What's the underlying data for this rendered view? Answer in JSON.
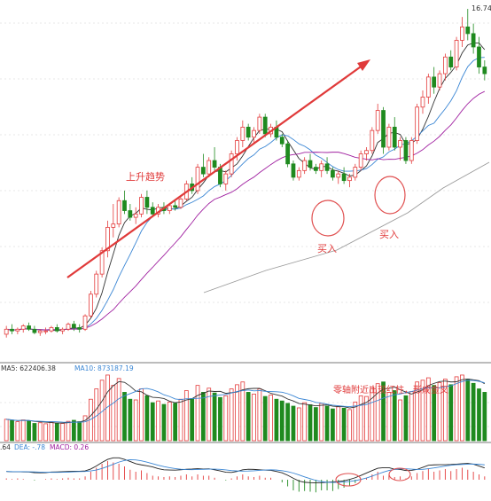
{
  "chart_data": {
    "type": "candlestick",
    "price_panel": {
      "high_label": "16.74",
      "ma_colors": {
        "ma5": "#333333",
        "ma10": "#3a86d4",
        "ma20": "#a020a0",
        "ma60": "#9a9a9a"
      },
      "annotations": {
        "trend_text": "上升趋势",
        "buy_text_1": "买入",
        "buy_text_2": "买入"
      },
      "candles_ohlc": [
        [
          7.0,
          7.25,
          6.9,
          7.15
        ],
        [
          7.15,
          7.3,
          7.0,
          7.1
        ],
        [
          7.1,
          7.2,
          7.0,
          7.15
        ],
        [
          7.15,
          7.3,
          7.05,
          7.25
        ],
        [
          7.25,
          7.35,
          7.1,
          7.15
        ],
        [
          7.15,
          7.25,
          7.0,
          7.05
        ],
        [
          7.05,
          7.15,
          6.95,
          7.1
        ],
        [
          7.1,
          7.2,
          7.0,
          7.1
        ],
        [
          7.1,
          7.25,
          7.05,
          7.2
        ],
        [
          7.2,
          7.3,
          7.05,
          7.1
        ],
        [
          7.1,
          7.2,
          7.0,
          7.15
        ],
        [
          7.15,
          7.35,
          7.1,
          7.3
        ],
        [
          7.3,
          7.4,
          7.1,
          7.2
        ],
        [
          7.2,
          7.3,
          7.05,
          7.15
        ],
        [
          7.15,
          7.6,
          7.1,
          7.55
        ],
        [
          7.55,
          8.3,
          7.5,
          8.2
        ],
        [
          8.2,
          8.9,
          8.1,
          8.8
        ],
        [
          8.8,
          9.6,
          8.7,
          9.5
        ],
        [
          9.5,
          10.4,
          9.3,
          10.2
        ],
        [
          10.2,
          10.9,
          9.9,
          10.3
        ],
        [
          10.3,
          11.1,
          10.2,
          11.0
        ],
        [
          11.0,
          11.3,
          10.6,
          10.7
        ],
        [
          10.7,
          10.9,
          10.4,
          10.5
        ],
        [
          10.5,
          10.8,
          10.3,
          10.6
        ],
        [
          10.6,
          11.2,
          10.5,
          11.1
        ],
        [
          11.1,
          11.3,
          10.6,
          10.8
        ],
        [
          10.8,
          10.95,
          10.5,
          10.6
        ],
        [
          10.6,
          10.9,
          10.5,
          10.8
        ],
        [
          10.8,
          10.95,
          10.6,
          10.7
        ],
        [
          10.7,
          10.9,
          10.6,
          10.85
        ],
        [
          10.85,
          11.0,
          10.7,
          10.8
        ],
        [
          10.8,
          11.1,
          10.75,
          11.05
        ],
        [
          11.05,
          11.6,
          11.0,
          11.5
        ],
        [
          11.5,
          11.7,
          11.2,
          11.3
        ],
        [
          11.3,
          12.1,
          11.2,
          12.0
        ],
        [
          12.0,
          12.4,
          11.7,
          11.8
        ],
        [
          11.8,
          12.3,
          11.7,
          12.2
        ],
        [
          12.2,
          12.6,
          11.9,
          12.0
        ],
        [
          12.0,
          12.1,
          11.4,
          11.5
        ],
        [
          11.5,
          11.9,
          11.3,
          11.8
        ],
        [
          11.8,
          12.5,
          11.7,
          12.4
        ],
        [
          12.4,
          12.9,
          12.2,
          12.8
        ],
        [
          12.8,
          13.4,
          12.6,
          13.2
        ],
        [
          13.2,
          13.3,
          12.8,
          12.9
        ],
        [
          12.9,
          13.2,
          12.7,
          13.1
        ],
        [
          13.1,
          13.6,
          13.0,
          13.5
        ],
        [
          13.5,
          13.6,
          12.9,
          13.0
        ],
        [
          13.0,
          13.3,
          12.9,
          13.2
        ],
        [
          13.2,
          13.4,
          12.8,
          12.9
        ],
        [
          12.9,
          13.0,
          12.6,
          12.7
        ],
        [
          12.7,
          12.8,
          12.0,
          12.1
        ],
        [
          12.1,
          12.2,
          11.6,
          11.7
        ],
        [
          11.7,
          12.0,
          11.6,
          11.9
        ],
        [
          11.9,
          12.3,
          11.8,
          12.2
        ],
        [
          12.2,
          12.4,
          11.9,
          12.0
        ],
        [
          12.0,
          12.1,
          11.8,
          11.9
        ],
        [
          11.9,
          12.2,
          11.7,
          12.1
        ],
        [
          12.1,
          12.3,
          11.8,
          11.9
        ],
        [
          11.9,
          12.0,
          11.6,
          11.7
        ],
        [
          11.7,
          11.9,
          11.5,
          11.8
        ],
        [
          11.8,
          12.0,
          11.5,
          11.6
        ],
        [
          11.6,
          11.8,
          11.4,
          11.7
        ],
        [
          11.7,
          12.1,
          11.6,
          12.0
        ],
        [
          12.0,
          12.5,
          11.9,
          12.4
        ],
        [
          12.4,
          12.6,
          12.2,
          12.5
        ],
        [
          12.5,
          13.2,
          12.4,
          13.1
        ],
        [
          13.1,
          13.9,
          13.0,
          13.7
        ],
        [
          13.7,
          13.8,
          12.4,
          12.6
        ],
        [
          12.6,
          13.3,
          12.5,
          13.2
        ],
        [
          13.2,
          13.5,
          12.5,
          12.6
        ],
        [
          12.6,
          12.9,
          12.2,
          12.8
        ],
        [
          12.8,
          12.9,
          12.1,
          12.2
        ],
        [
          12.2,
          12.9,
          12.1,
          12.8
        ],
        [
          12.8,
          13.9,
          12.7,
          13.8
        ],
        [
          13.8,
          14.3,
          13.6,
          14.1
        ],
        [
          14.1,
          14.8,
          13.9,
          14.7
        ],
        [
          14.7,
          15.0,
          14.2,
          14.4
        ],
        [
          14.4,
          14.9,
          14.3,
          14.8
        ],
        [
          14.8,
          15.4,
          14.6,
          15.3
        ],
        [
          15.3,
          15.5,
          14.9,
          15.0
        ],
        [
          15.0,
          15.9,
          14.9,
          15.8
        ],
        [
          15.8,
          16.5,
          15.6,
          16.2
        ],
        [
          16.2,
          16.74,
          15.8,
          16.0
        ],
        [
          16.0,
          16.3,
          15.4,
          15.6
        ],
        [
          15.6,
          15.9,
          14.8,
          15.0
        ],
        [
          15.0,
          15.2,
          14.6,
          14.8
        ]
      ]
    },
    "volume_panel": {
      "ma5_label": "MA5: 622406.38",
      "ma10_label": "MA10: 873187.19",
      "annotation": "零轴附近出现红柱，形成金叉",
      "volumes": [
        62,
        58,
        55,
        60,
        57,
        50,
        52,
        49,
        54,
        51,
        50,
        56,
        59,
        55,
        72,
        120,
        150,
        175,
        190,
        160,
        180,
        140,
        120,
        118,
        150,
        130,
        110,
        115,
        105,
        112,
        108,
        120,
        145,
        122,
        160,
        140,
        152,
        138,
        125,
        130,
        150,
        162,
        170,
        140,
        135,
        150,
        128,
        132,
        120,
        115,
        108,
        100,
        95,
        110,
        104,
        96,
        108,
        100,
        92,
        98,
        94,
        90,
        112,
        130,
        128,
        155,
        165,
        170,
        140,
        145,
        118,
        130,
        142,
        170,
        175,
        182,
        160,
        168,
        178,
        162,
        185,
        190,
        178,
        166,
        150,
        140
      ]
    },
    "macd_panel": {
      "dif_label": ".64",
      "dea_label": "DEA: -.78",
      "macd_label": "MACD: 0.26",
      "macd_values": [
        0.02,
        0.01,
        0.02,
        0.01,
        0.0,
        -0.01,
        0.0,
        0.01,
        0.02,
        0.01,
        0.02,
        0.03,
        0.02,
        0.02,
        0.05,
        0.12,
        0.18,
        0.24,
        0.28,
        0.26,
        0.24,
        0.2,
        0.15,
        0.12,
        0.14,
        0.1,
        0.06,
        0.05,
        0.04,
        0.05,
        0.04,
        0.06,
        0.08,
        0.05,
        0.08,
        0.06,
        0.06,
        0.03,
        0.0,
        -0.01,
        0.02,
        0.05,
        0.08,
        0.05,
        0.04,
        0.06,
        0.03,
        0.03,
        0.0,
        -0.04,
        -0.1,
        -0.16,
        -0.18,
        -0.17,
        -0.18,
        -0.19,
        -0.16,
        -0.16,
        -0.17,
        -0.14,
        -0.12,
        -0.1,
        -0.05,
        0.0,
        0.03,
        0.08,
        0.12,
        0.06,
        0.08,
        0.04,
        0.05,
        0.02,
        0.05,
        0.1,
        0.13,
        0.16,
        0.12,
        0.14,
        0.16,
        0.13,
        0.16,
        0.18,
        0.15,
        0.12,
        0.08,
        0.05
      ]
    }
  }
}
